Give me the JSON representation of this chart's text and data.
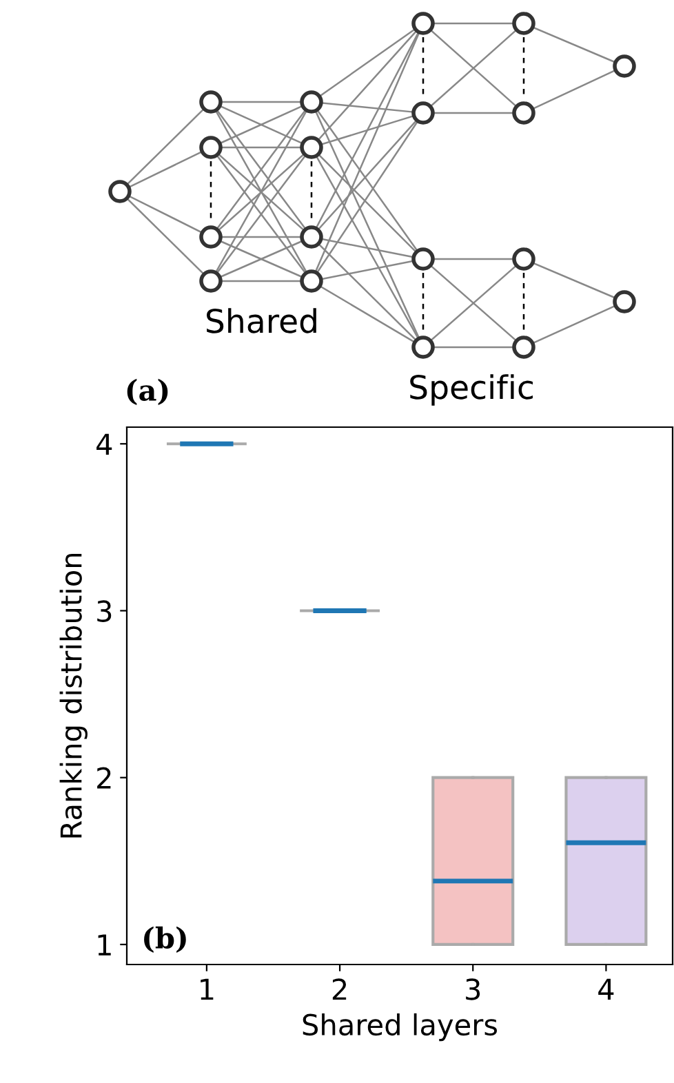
{
  "chart_data": {
    "type": "box",
    "xlabel": "Shared layers",
    "ylabel": "Ranking distribution",
    "categories": [
      "1",
      "2",
      "3",
      "4"
    ],
    "boxes": [
      {
        "low": 4,
        "q1": 4,
        "median": 4,
        "q3": 4,
        "high": 4
      },
      {
        "low": 3,
        "q1": 3,
        "median": 3,
        "q3": 3,
        "high": 3
      },
      {
        "low": 1,
        "q1": 1,
        "median": 1.38,
        "q3": 2,
        "high": 2
      },
      {
        "low": 1,
        "q1": 1,
        "median": 1.61,
        "q3": 2,
        "high": 2
      }
    ],
    "colors": [
      null,
      null,
      "#f4c2c2",
      "#dcd0ee"
    ],
    "ylim": [
      0.88,
      4.1
    ],
    "yticks": [
      1,
      2,
      3,
      4
    ],
    "grid": false,
    "annotations": [
      "(a)",
      "Shared",
      "Specific",
      "(b)"
    ]
  }
}
